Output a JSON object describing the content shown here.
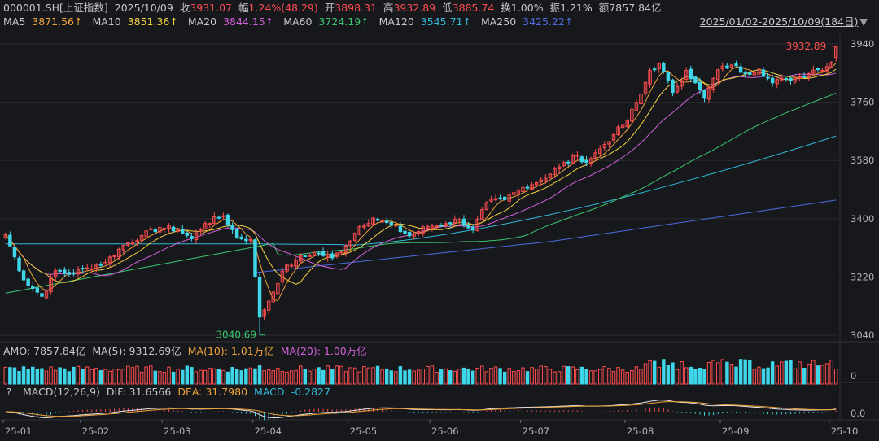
{
  "header": {
    "symbol": "000001.SH[上证指数]",
    "date": "2025/10/09",
    "close_label": "收",
    "close": "3931.07",
    "change_label": "幅",
    "change": "1.24%(48.29)",
    "open_label": "开",
    "open": "3898.31",
    "high_label": "高",
    "high": "3932.89",
    "low_label": "低",
    "low": "3885.74",
    "turnover_label": "换",
    "turnover": "1.00%",
    "amplitude_label": "振",
    "amplitude": "1.21%",
    "amount_label": "额",
    "amount": "7857.84亿"
  },
  "ma_row": [
    {
      "name": "MA5",
      "value": "3871.56↑"
    },
    {
      "name": "MA10",
      "value": "3851.36↑"
    },
    {
      "name": "MA20",
      "value": "3844.15↑"
    },
    {
      "name": "MA60",
      "value": "3724.19↑"
    },
    {
      "name": "MA120",
      "value": "3545.71↑"
    },
    {
      "name": "MA250",
      "value": "3425.22↑"
    }
  ],
  "range_label": "2025/01/02-2025/10/09(184日)",
  "volume_row": {
    "amo": "AMO: 7857.84亿",
    "ma5": "MA(5): 9312.69亿",
    "ma10": "MA(10): 1.01万亿",
    "ma20": "MA(20): 1.00万亿"
  },
  "macd_row": {
    "help": "?",
    "title": "MACD(12,26,9)",
    "dif": "DIF: 31.6566",
    "dea": "DEA: 31.7980",
    "macd": "MACD: -0.2827"
  },
  "colors": {
    "up": "#ff4d4f",
    "down": "#3ed6e8",
    "ma5": "#f0a43a",
    "ma10": "#f3d23e",
    "ma20": "#d060d8",
    "ma60": "#3bc46e",
    "ma120": "#32b8d8",
    "ma250": "#4c6be0",
    "background": "#17181c",
    "grid": "#2a2b31"
  },
  "chart_data": {
    "type": "candlestick",
    "y_ticks": [
      3940,
      3760,
      3580,
      3400,
      3220,
      3040
    ],
    "ylim": [
      3040,
      3940
    ],
    "x_labels": [
      "25-01",
      "25-02",
      "25-03",
      "25-04",
      "25-05",
      "25-06",
      "25-07",
      "25-08",
      "25-09",
      "25-10"
    ],
    "annotations": {
      "high_value": "3932.89",
      "low_value": "3040.69"
    },
    "volume_axis_tick": "0",
    "macd_axis_tick": "0.0",
    "keypoints": [
      {
        "d": 0,
        "c": 3351
      },
      {
        "d": 4,
        "c": 3211
      },
      {
        "d": 8,
        "c": 3160
      },
      {
        "d": 11,
        "c": 3240
      },
      {
        "d": 14,
        "c": 3228
      },
      {
        "d": 18,
        "c": 3248
      },
      {
        "d": 22,
        "c": 3265
      },
      {
        "d": 26,
        "c": 3318
      },
      {
        "d": 30,
        "c": 3348
      },
      {
        "d": 34,
        "c": 3373
      },
      {
        "d": 38,
        "c": 3366
      },
      {
        "d": 41,
        "c": 3338
      },
      {
        "d": 44,
        "c": 3385
      },
      {
        "d": 48,
        "c": 3409
      },
      {
        "d": 51,
        "c": 3343
      },
      {
        "d": 54,
        "c": 3336
      },
      {
        "d": 56,
        "c": 3096
      },
      {
        "d": 58,
        "c": 3145
      },
      {
        "d": 61,
        "c": 3238
      },
      {
        "d": 64,
        "c": 3272
      },
      {
        "d": 68,
        "c": 3296
      },
      {
        "d": 72,
        "c": 3279
      },
      {
        "d": 75,
        "c": 3316
      },
      {
        "d": 78,
        "c": 3376
      },
      {
        "d": 81,
        "c": 3402
      },
      {
        "d": 85,
        "c": 3380
      },
      {
        "d": 89,
        "c": 3347
      },
      {
        "d": 93,
        "c": 3376
      },
      {
        "d": 97,
        "c": 3385
      },
      {
        "d": 100,
        "c": 3397
      },
      {
        "d": 103,
        "c": 3365
      },
      {
        "d": 106,
        "c": 3450
      },
      {
        "d": 110,
        "c": 3459
      },
      {
        "d": 114,
        "c": 3497
      },
      {
        "d": 118,
        "c": 3520
      },
      {
        "d": 122,
        "c": 3560
      },
      {
        "d": 126,
        "c": 3596
      },
      {
        "d": 128,
        "c": 3574
      },
      {
        "d": 131,
        "c": 3616
      },
      {
        "d": 134,
        "c": 3660
      },
      {
        "d": 137,
        "c": 3704
      },
      {
        "d": 140,
        "c": 3785
      },
      {
        "d": 142,
        "c": 3858
      },
      {
        "d": 144,
        "c": 3880
      },
      {
        "d": 147,
        "c": 3790
      },
      {
        "d": 150,
        "c": 3858
      },
      {
        "d": 152,
        "c": 3820
      },
      {
        "d": 154,
        "c": 3772
      },
      {
        "d": 157,
        "c": 3860
      },
      {
        "d": 160,
        "c": 3875
      },
      {
        "d": 163,
        "c": 3850
      },
      {
        "d": 166,
        "c": 3862
      },
      {
        "d": 169,
        "c": 3820
      },
      {
        "d": 172,
        "c": 3832
      },
      {
        "d": 175,
        "c": 3838
      },
      {
        "d": 178,
        "c": 3859
      },
      {
        "d": 181,
        "c": 3870
      },
      {
        "d": 182,
        "c": 3883
      },
      {
        "d": 183,
        "c": 3931.07
      }
    ],
    "last_bar": {
      "open": 3898.31,
      "high": 3932.89,
      "low": 3885.74,
      "close": 3931.07
    }
  }
}
